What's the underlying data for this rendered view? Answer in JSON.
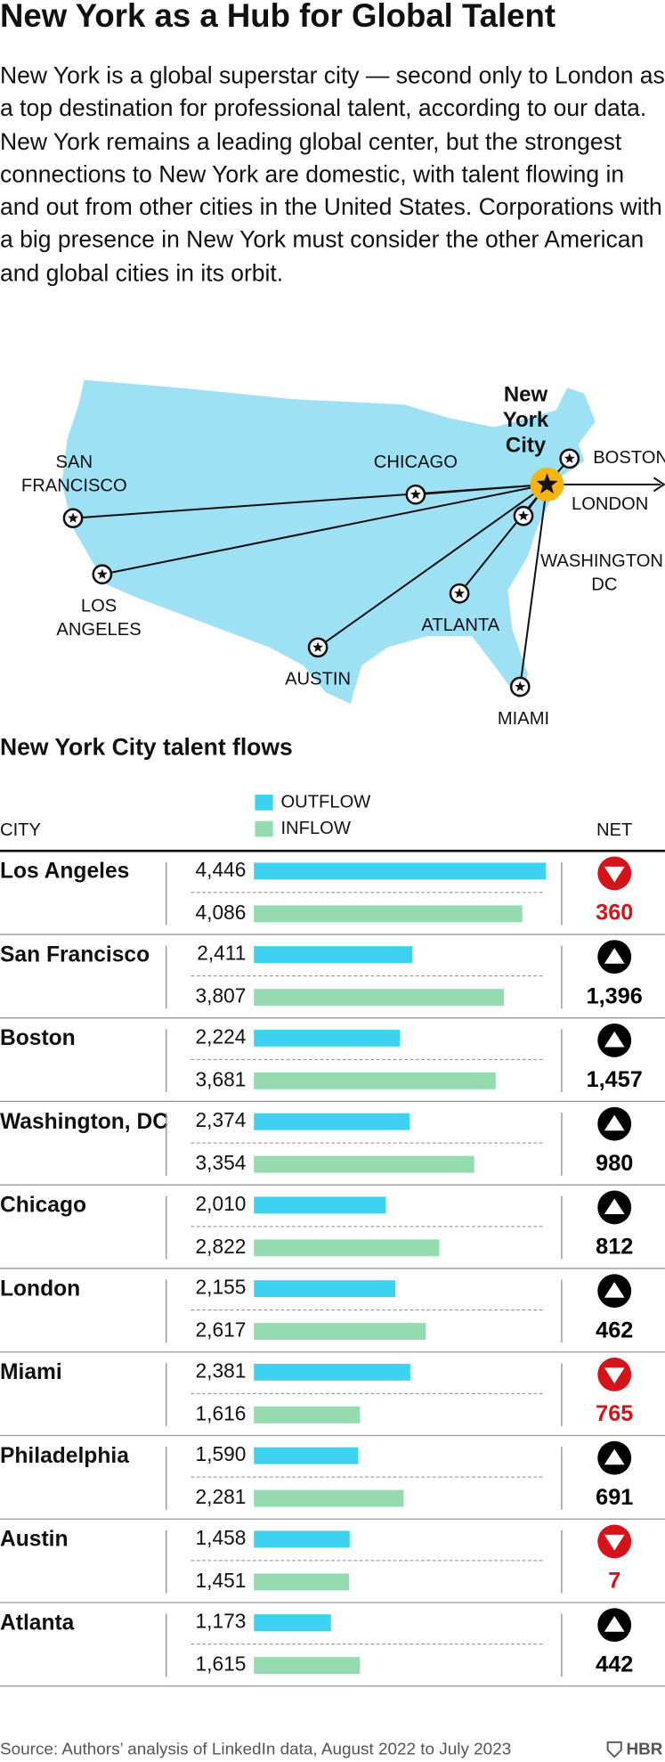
{
  "header": {
    "title": "New York as a Hub for Global Talent",
    "description": "New York is a global superstar city — second only to London as a top destination for professional talent, according to our data. New York remains a leading global center, but the strongest connections to New York are domestic, with talent flowing in and out from other cities in the United States. Corporations with a big presence in New York must consider the other American and global cities in its orbit."
  },
  "map": {
    "hub": [
      "New",
      "York",
      "City"
    ],
    "cities": [
      [
        "SAN",
        "FRANCISCO"
      ],
      [
        "LOS",
        "ANGELES"
      ],
      [
        "CHICAGO"
      ],
      [
        "AUSTIN"
      ],
      [
        "ATLANTA"
      ],
      [
        "WASHINGTON,",
        "DC"
      ],
      [
        "MIAMI"
      ],
      [
        "BOSTON"
      ],
      [
        "LONDON"
      ]
    ]
  },
  "chart_data": {
    "type": "bar",
    "title": "New York City talent flows",
    "category_header": "CITY",
    "net_header": "NET",
    "categories": [
      "Los Angeles",
      "San Francisco",
      "Boston",
      "Washington, DC",
      "Chicago",
      "London",
      "Miami",
      "Philadelphia",
      "Austin",
      "Atlanta"
    ],
    "series": [
      {
        "name": "OUTFLOW",
        "color": "#3cd2f0",
        "values": [
          4446,
          2411,
          2224,
          2374,
          2010,
          2155,
          2381,
          1590,
          1458,
          1173
        ],
        "value_labels": [
          "4,446",
          "2,411",
          "2,224",
          "2,374",
          "2,010",
          "2,155",
          "2,381",
          "1,590",
          "1,458",
          "1,173"
        ]
      },
      {
        "name": "INFLOW",
        "color": "#95dbb0",
        "values": [
          4086,
          3807,
          3681,
          3354,
          2822,
          2617,
          1616,
          2281,
          1451,
          1615
        ],
        "value_labels": [
          "4,086",
          "3,807",
          "3,681",
          "3,354",
          "2,822",
          "2,617",
          "1,616",
          "2,281",
          "1,451",
          "1,615"
        ]
      }
    ],
    "net": {
      "values": [
        -360,
        1396,
        1457,
        980,
        812,
        462,
        -765,
        691,
        -7,
        442
      ],
      "value_labels": [
        "360",
        "1,396",
        "1,457",
        "980",
        "812",
        "462",
        "765",
        "691",
        "7",
        "442"
      ],
      "colors": {
        "up": "#000000",
        "down": "#d3141b"
      }
    }
  },
  "footer": {
    "source": "Source: Authors’ analysis of LinkedIn data, August 2022 to July 2023",
    "logo": "HBR"
  }
}
